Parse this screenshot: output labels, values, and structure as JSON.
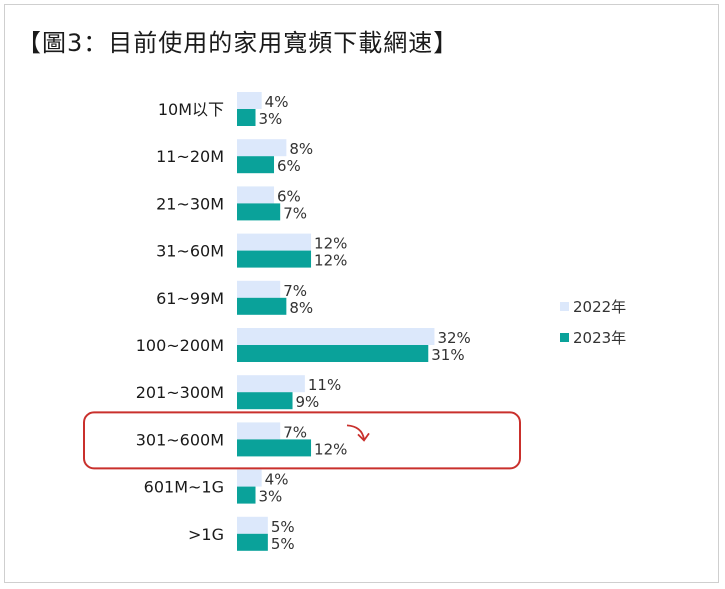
{
  "title": "【圖3：目前使用的家用寬頻下載網速】",
  "colors": {
    "s2022": "#dce8fb",
    "s2023": "#0aa29a",
    "highlight": "#c9302c"
  },
  "chart_data": {
    "type": "bar",
    "orientation": "horizontal",
    "title": "【圖3：目前使用的家用寬頻下載網速】",
    "categories": [
      "10M以下",
      "11~20M",
      "21~30M",
      "31~60M",
      "61~99M",
      "100~200M",
      "201~300M",
      "301~600M",
      "601M~1G",
      ">1G"
    ],
    "series": [
      {
        "name": "2022年",
        "values": [
          4,
          8,
          6,
          12,
          7,
          32,
          11,
          7,
          4,
          5
        ],
        "labels": [
          "4%",
          "8%",
          "6%",
          "12%",
          "7%",
          "32%",
          "11%",
          "7%",
          "4%",
          "5%"
        ]
      },
      {
        "name": "2023年",
        "values": [
          3,
          6,
          7,
          12,
          8,
          31,
          9,
          12,
          3,
          5
        ],
        "labels": [
          "3%",
          "6%",
          "7%",
          "12%",
          "8%",
          "31%",
          "9%",
          "12%",
          "3%",
          "5%"
        ]
      }
    ],
    "unit": "%",
    "legend_position": "right",
    "highlighted_category": "301~600M",
    "grid": false
  }
}
